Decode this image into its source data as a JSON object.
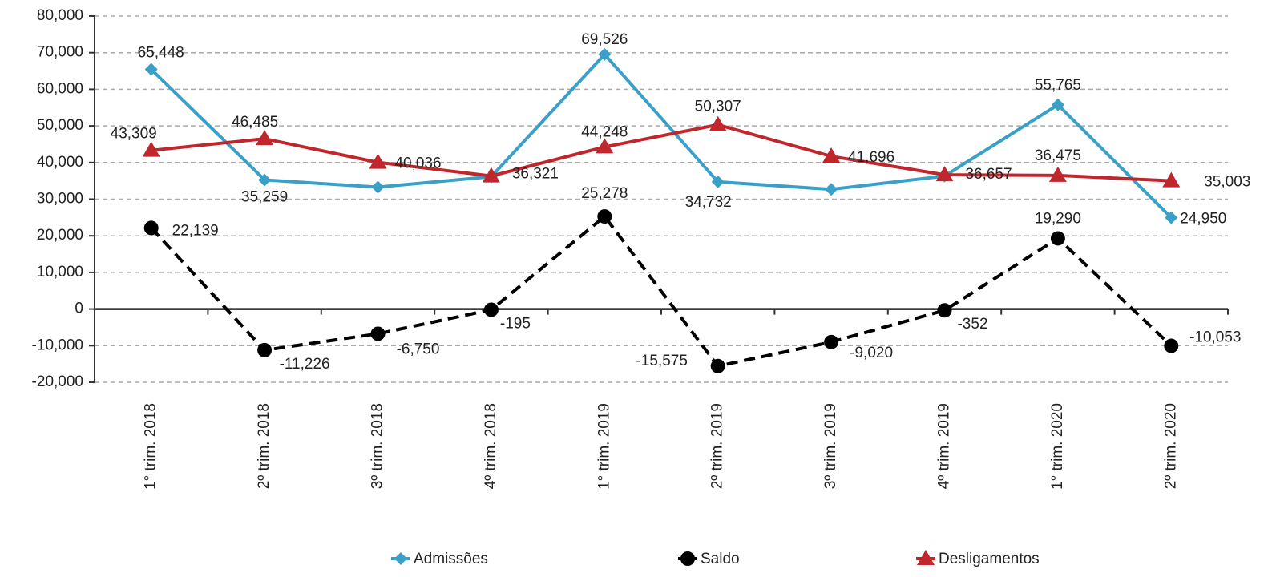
{
  "chart_data": {
    "type": "line",
    "categories": [
      "1° trim. 2018",
      "2º trim. 2018",
      "3º trim. 2018",
      "4º trim. 2018",
      "1° trim. 2019",
      "2º trim. 2019",
      "3º trim. 2019",
      "4º trim. 2019",
      "1° trim. 2020",
      "2º trim. 2020"
    ],
    "series": [
      {
        "name": "Admissões",
        "color": "#3ba0c8",
        "marker": "diamond",
        "values": [
          65448,
          35259,
          33286,
          36126,
          69526,
          34732,
          32676,
          36305,
          55765,
          24950
        ],
        "value_labels": [
          "65,448",
          "35,259",
          null,
          null,
          "69,526",
          "34,732",
          null,
          null,
          "55,765",
          "24,950"
        ]
      },
      {
        "name": "Saldo",
        "color": "#000000",
        "marker": "circle",
        "dashed": true,
        "values": [
          22139,
          -11226,
          -6750,
          -195,
          25278,
          -15575,
          -9020,
          -352,
          19290,
          -10053
        ],
        "value_labels": [
          "22,139",
          "-11,226",
          "-6,750",
          "-195",
          "25,278",
          "-15,575",
          "-9,020",
          "-352",
          "19,290",
          "-10,053"
        ]
      },
      {
        "name": "Desligamentos",
        "color": "#c0272d",
        "marker": "triangle",
        "values": [
          43309,
          46485,
          40036,
          36321,
          44248,
          50307,
          41696,
          36657,
          36475,
          35003
        ],
        "value_labels": [
          "43,309",
          "46,485",
          "40,036",
          "36,321",
          "44,248",
          "50,307",
          "41,696",
          "36,657",
          "36,475",
          "35,003"
        ]
      }
    ],
    "ylim": [
      -20000,
      80000
    ],
    "yticks": [
      {
        "value": -20000,
        "label": "-20,000"
      },
      {
        "value": -10000,
        "label": "-10,000"
      },
      0,
      {
        "value": 10000,
        "label": "10,000"
      },
      {
        "value": 20000,
        "label": "20,000"
      },
      {
        "value": 30000,
        "label": "30,000"
      },
      {
        "value": 40000,
        "label": "40,000"
      },
      {
        "value": 50000,
        "label": "50,000"
      },
      {
        "value": 60000,
        "label": "60,000"
      },
      {
        "value": 70000,
        "label": "70,000"
      },
      {
        "value": 80000,
        "label": "80,000"
      }
    ],
    "grid": true,
    "legend": "bottom"
  }
}
